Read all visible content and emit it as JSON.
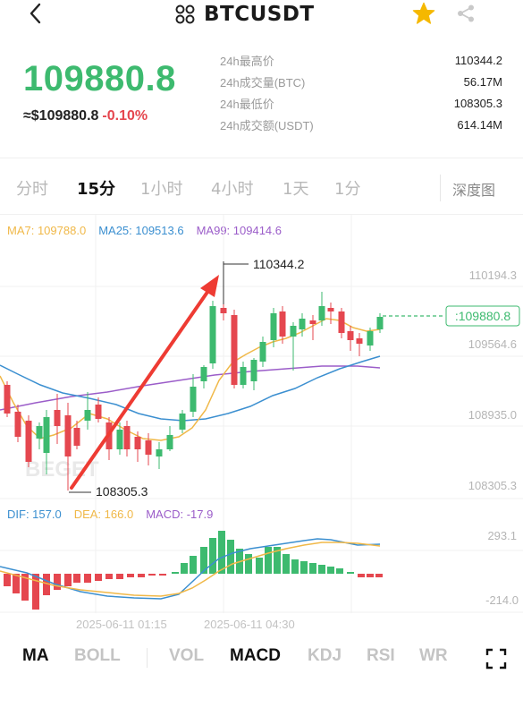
{
  "header": {
    "back_icon": "chevron-left-icon",
    "pair_icon": "four-dots-icon",
    "title": "BTCUSDT",
    "favorite_icon": "star-icon",
    "favorite_color": "#f5b800",
    "share_icon": "share-icon"
  },
  "ticker": {
    "last_price": "109880.8",
    "usd_price": "≈$109880.8",
    "change": "-0.10%",
    "price_color": "#3dba6f",
    "change_color": "#e5474f"
  },
  "stats": [
    {
      "label": "24h最高价",
      "value": "110344.2"
    },
    {
      "label": "24h成交量(BTC)",
      "value": "56.17M"
    },
    {
      "label": "24h最低价",
      "value": "108305.3"
    },
    {
      "label": "24h成交额(USDT)",
      "value": "614.14M"
    }
  ],
  "intervals": {
    "items": [
      "分时",
      "15分",
      "1小时",
      "4小时",
      "1天",
      "1分"
    ],
    "active": "15分",
    "depth_label": "深度图"
  },
  "ma_legend": {
    "ma7": "MA7: 109788.0",
    "ma25": "MA25: 109513.6",
    "ma99": "MA99: 109414.6"
  },
  "chart": {
    "price_axis": [
      "110194.3",
      "109564.6",
      "108935.0",
      "108305.3"
    ],
    "high_label": "110344.2",
    "low_label": "108305.3",
    "current_price_tag": ":109880.8",
    "watermark": "BEGET",
    "macd_axis": [
      "293.1",
      "-214.0"
    ],
    "time_axis": [
      "2025-06-11 01:15",
      "2025-06-11 04:30"
    ]
  },
  "chart_data": {
    "type": "candlestick",
    "price_range": [
      108305.3,
      110344.2
    ],
    "up_color": "#3dba6f",
    "down_color": "#e5474f",
    "last_price": 109880.8,
    "high": 110344.2,
    "low": 108305.3
  },
  "macd_legend": {
    "dif": "DIF: 157.0",
    "dea": "DEA: 166.0",
    "macd": "MACD: -17.9"
  },
  "indicator_tabs": {
    "items": [
      "MA",
      "BOLL",
      "VOL",
      "MACD",
      "KDJ",
      "RSI",
      "WR"
    ],
    "active": [
      "MA",
      "MACD"
    ],
    "fullscreen_icon": "fullscreen-icon"
  }
}
